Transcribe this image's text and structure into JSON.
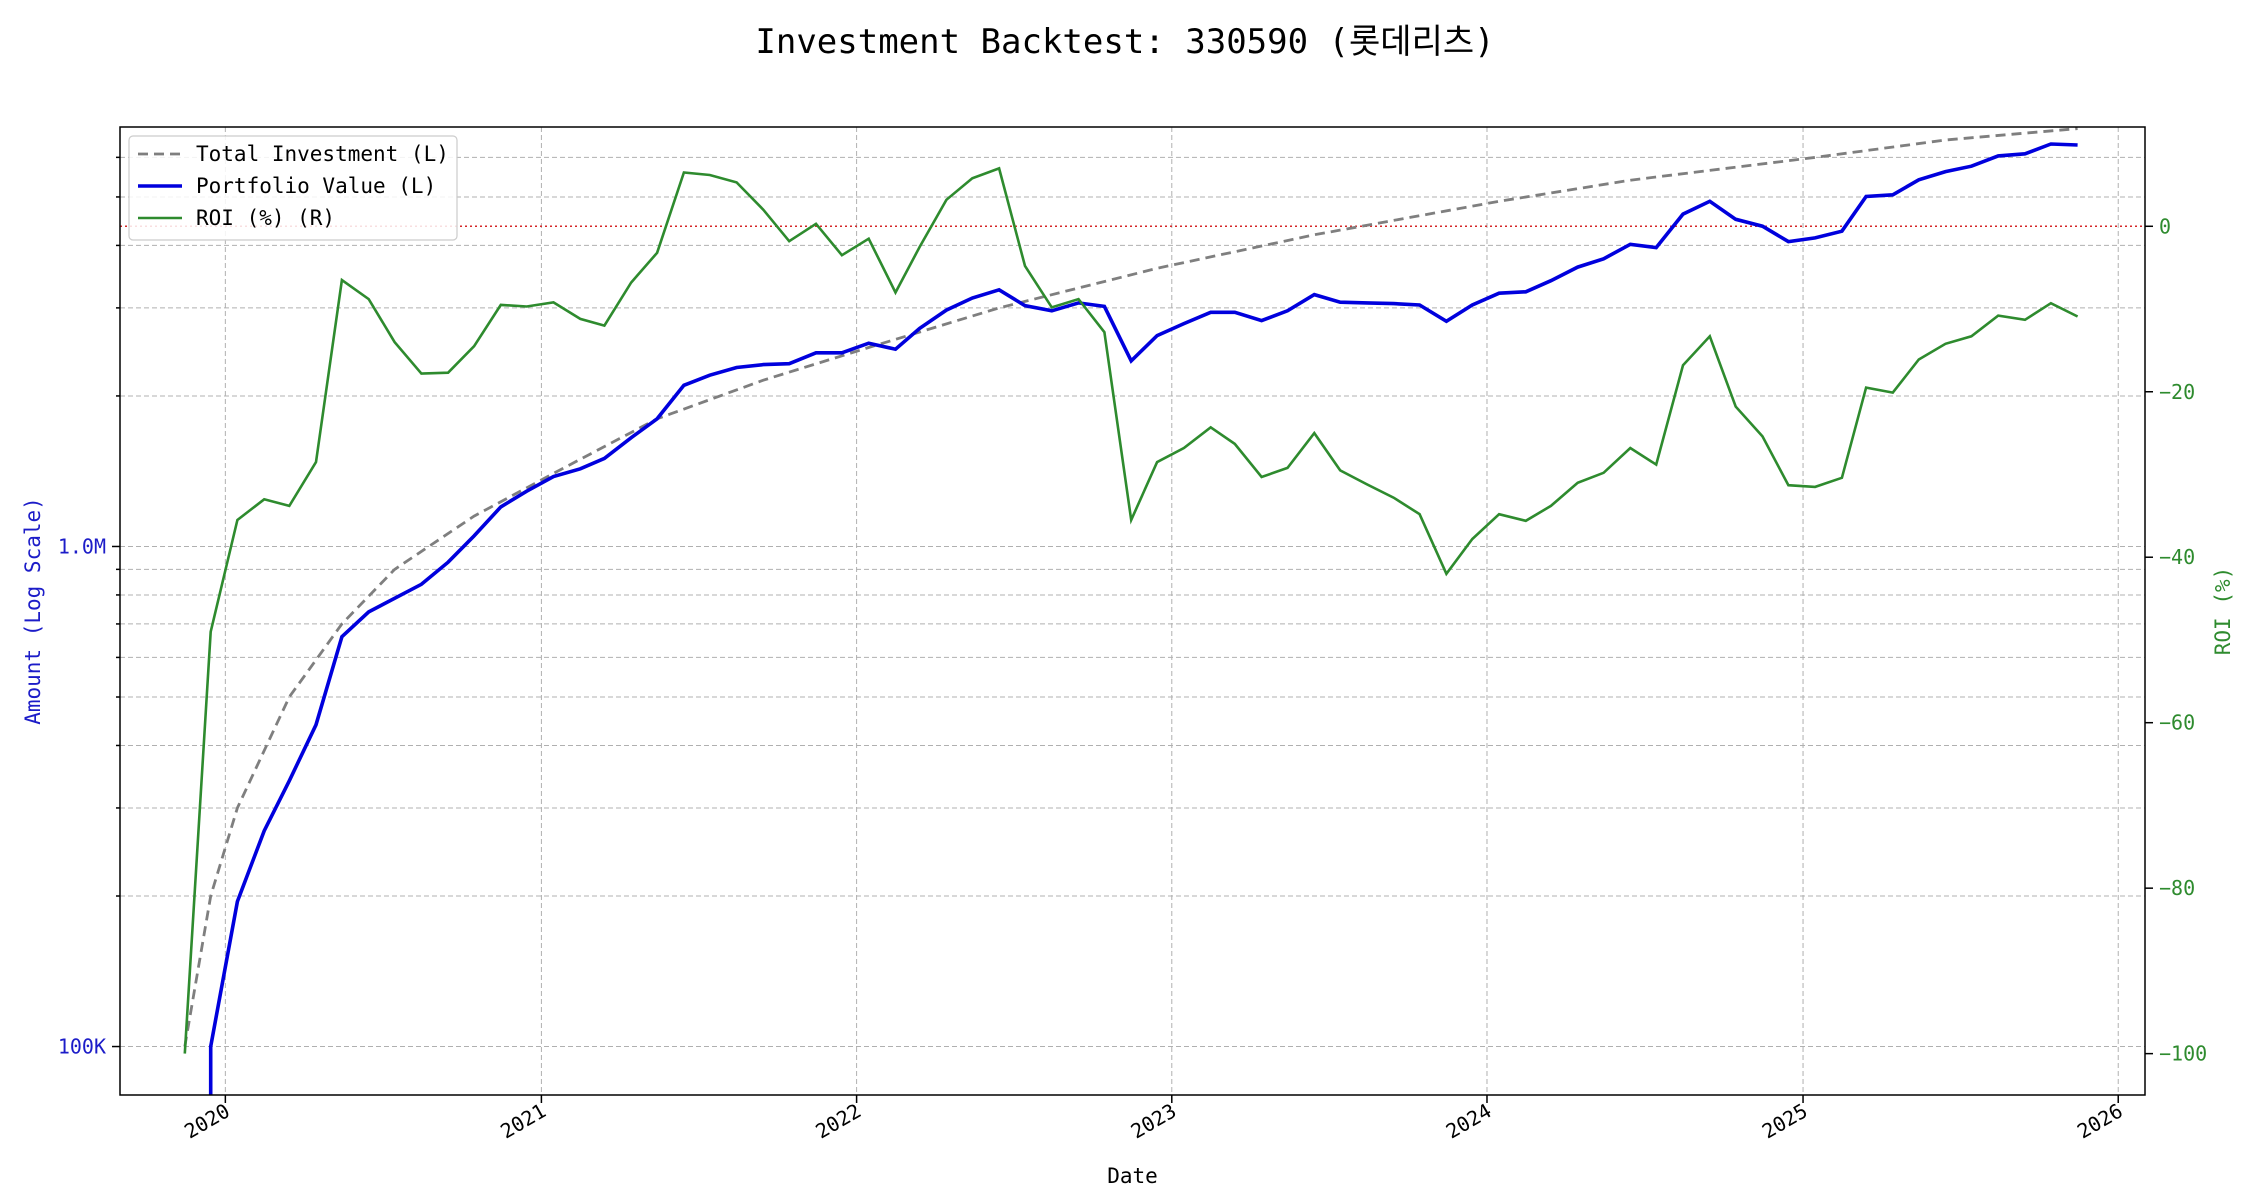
{
  "chart_data": {
    "type": "line",
    "title": "Investment Backtest: 330590 (롯데리츠)",
    "xlabel": "Date",
    "ylabel_left": "Amount (Log Scale)",
    "ylabel_right": "ROI (%)",
    "left_axis": {
      "scale": "log",
      "ylim": [
        80000,
        6900000
      ],
      "ticks": [
        100000,
        1000000
      ],
      "tick_labels": [
        "100K",
        "1.0M"
      ]
    },
    "right_axis": {
      "ylim": [
        -105,
        12
      ],
      "ticks": [
        0,
        -20,
        -40,
        -60,
        -80,
        -100
      ],
      "tick_labels": [
        "0",
        "−20",
        "−40",
        "−60",
        "−80",
        "−100"
      ]
    },
    "x_axis": {
      "xlim": [
        "2019-09-01",
        "2026-02-01"
      ],
      "ticks": [
        "2020-01-01",
        "2021-01-01",
        "2022-01-01",
        "2023-01-01",
        "2024-01-01",
        "2025-01-01",
        "2026-01-01"
      ],
      "tick_labels": [
        "2020",
        "2021",
        "2022",
        "2023",
        "2024",
        "2025",
        "2026"
      ]
    },
    "grid": true,
    "legend_placement": "upper-left",
    "reference_line": {
      "axis": "right",
      "y": 0,
      "style": "dotted",
      "color": "#d62728"
    },
    "colors": {
      "investment": "#7f7f7f",
      "portfolio": "#0000dd",
      "roi": "#2e8b2e",
      "left_axis": "#1c1cc8",
      "right_axis": "#2e8b2e"
    },
    "legend": [
      {
        "label": "Total Investment (L)",
        "color": "#7f7f7f",
        "style": "dashed"
      },
      {
        "label": "Portfolio Value (L)",
        "color": "#0000dd",
        "style": "solid-thick"
      },
      {
        "label": "ROI (%) (R)",
        "color": "#2e8b2e",
        "style": "solid"
      }
    ],
    "series": [
      {
        "name": "Total Investment (L)",
        "axis": "left",
        "x": [
          "2019-11",
          "2019-12",
          "2020-01",
          "2020-03",
          "2020-05",
          "2020-07",
          "2020-10",
          "2021-01",
          "2021-05",
          "2021-09",
          "2022-01",
          "2022-06",
          "2022-12",
          "2023-06",
          "2024-01",
          "2024-06",
          "2025-01",
          "2025-06",
          "2025-11"
        ],
        "y": [
          100000,
          200000,
          300000,
          500000,
          700000,
          900000,
          1150000,
          1400000,
          1800000,
          2150000,
          2500000,
          3000000,
          3600000,
          4200000,
          4900000,
          5400000,
          6000000,
          6500000,
          6850000
        ]
      },
      {
        "name": "Portfolio Value (L)",
        "axis": "left",
        "x": [
          "2019-12",
          "2019-12",
          "2020-01",
          "2020-02",
          "2020-03",
          "2020-04",
          "2020-05",
          "2020-06",
          "2020-08",
          "2020-09",
          "2020-10",
          "2020-11",
          "2020-12",
          "2021-01",
          "2021-02",
          "2021-03",
          "2021-04",
          "2021-05",
          "2021-06",
          "2021-07",
          "2021-08",
          "2021-09",
          "2021-10",
          "2021-11",
          "2021-12",
          "2022-01",
          "2022-02",
          "2022-03",
          "2022-04",
          "2022-05",
          "2022-06",
          "2022-07",
          "2022-08",
          "2022-09",
          "2022-10",
          "2022-11",
          "2022-12",
          "2023-01",
          "2023-02",
          "2023-03",
          "2023-04",
          "2023-05",
          "2023-06",
          "2023-07",
          "2023-08",
          "2023-09",
          "2023-10",
          "2023-11",
          "2023-12",
          "2024-01",
          "2024-02",
          "2024-03",
          "2024-04",
          "2024-05",
          "2024-06",
          "2024-07",
          "2024-08",
          "2024-09",
          "2024-10",
          "2024-11",
          "2024-12",
          "2025-01",
          "2025-02",
          "2025-03",
          "2025-04",
          "2025-05",
          "2025-06",
          "2025-07",
          "2025-08",
          "2025-09",
          "2025-10",
          "2025-11"
        ],
        "y": [
          70000,
          100000,
          195000,
          270000,
          340000,
          440000,
          660000,
          740000,
          840000,
          930000,
          1050000,
          1200000,
          1290000,
          1380000,
          1430000,
          1500000,
          1650000,
          1800000,
          2100000,
          2200000,
          2280000,
          2310000,
          2320000,
          2440000,
          2440000,
          2550000,
          2480000,
          2730000,
          2970000,
          3140000,
          3260000,
          3030000,
          2960000,
          3070000,
          3020000,
          2350000,
          2640000,
          2790000,
          2940000,
          2940000,
          2830000,
          2960000,
          3190000,
          3080000,
          3070000,
          3060000,
          3040000,
          2820000,
          3040000,
          3210000,
          3230000,
          3400000,
          3620000,
          3760000,
          4020000,
          3960000,
          4620000,
          4900000,
          4510000,
          4370000,
          4070000,
          4140000,
          4270000,
          5010000,
          5050000,
          5410000,
          5620000,
          5760000,
          6040000,
          6100000,
          6380000,
          6350000
        ]
      },
      {
        "name": "ROI (%) (R)",
        "axis": "right",
        "x": [
          "2019-11",
          "2019-12",
          "2020-01",
          "2020-02",
          "2020-03",
          "2020-04",
          "2020-05",
          "2020-06",
          "2020-07",
          "2020-08",
          "2020-09",
          "2020-10",
          "2020-11",
          "2020-12",
          "2021-01",
          "2021-02",
          "2021-03",
          "2021-04",
          "2021-05",
          "2021-06",
          "2021-07",
          "2021-08",
          "2021-09",
          "2021-10",
          "2021-11",
          "2021-12",
          "2022-01",
          "2022-02",
          "2022-03",
          "2022-04",
          "2022-05",
          "2022-06",
          "2022-07",
          "2022-08",
          "2022-09",
          "2022-10",
          "2022-11",
          "2022-12",
          "2023-01",
          "2023-02",
          "2023-03",
          "2023-04",
          "2023-05",
          "2023-06",
          "2023-07",
          "2023-08",
          "2023-09",
          "2023-10",
          "2023-11",
          "2023-12",
          "2024-01",
          "2024-02",
          "2024-03",
          "2024-04",
          "2024-05",
          "2024-06",
          "2024-07",
          "2024-08",
          "2024-09",
          "2024-10",
          "2024-11",
          "2024-12",
          "2025-01",
          "2025-02",
          "2025-03",
          "2025-04",
          "2025-05",
          "2025-06",
          "2025-07",
          "2025-08",
          "2025-09",
          "2025-10",
          "2025-11"
        ],
        "y": [
          -100,
          -49,
          -35.5,
          -33,
          -33.8,
          -28.5,
          -6.5,
          -8.8,
          -14,
          -17.8,
          -17.7,
          -14.5,
          -9.5,
          -9.7,
          -9.2,
          -11.2,
          -12,
          -6.8,
          -3.2,
          6.5,
          6.2,
          5.3,
          2,
          -1.8,
          0.3,
          -3.5,
          -1.5,
          -8,
          -2.5,
          3.2,
          5.8,
          7,
          -4.8,
          -9.8,
          -8.8,
          -12.8,
          -35.5,
          -28.5,
          -26.8,
          -24.3,
          -26.3,
          -30.3,
          -29.2,
          -25,
          -29.5,
          -31.2,
          -32.8,
          -34.8,
          -42,
          -37.8,
          -34.8,
          -35.6,
          -33.8,
          -31,
          -29.8,
          -26.8,
          -28.8,
          -16.8,
          -13.3,
          -21.8,
          -25.4,
          -31.3,
          -31.5,
          -30.4,
          -19.5,
          -20.1,
          -16.1,
          -14.2,
          -13.3,
          -10.8,
          -11.3,
          -9.3,
          -10.9
        ]
      }
    ]
  }
}
